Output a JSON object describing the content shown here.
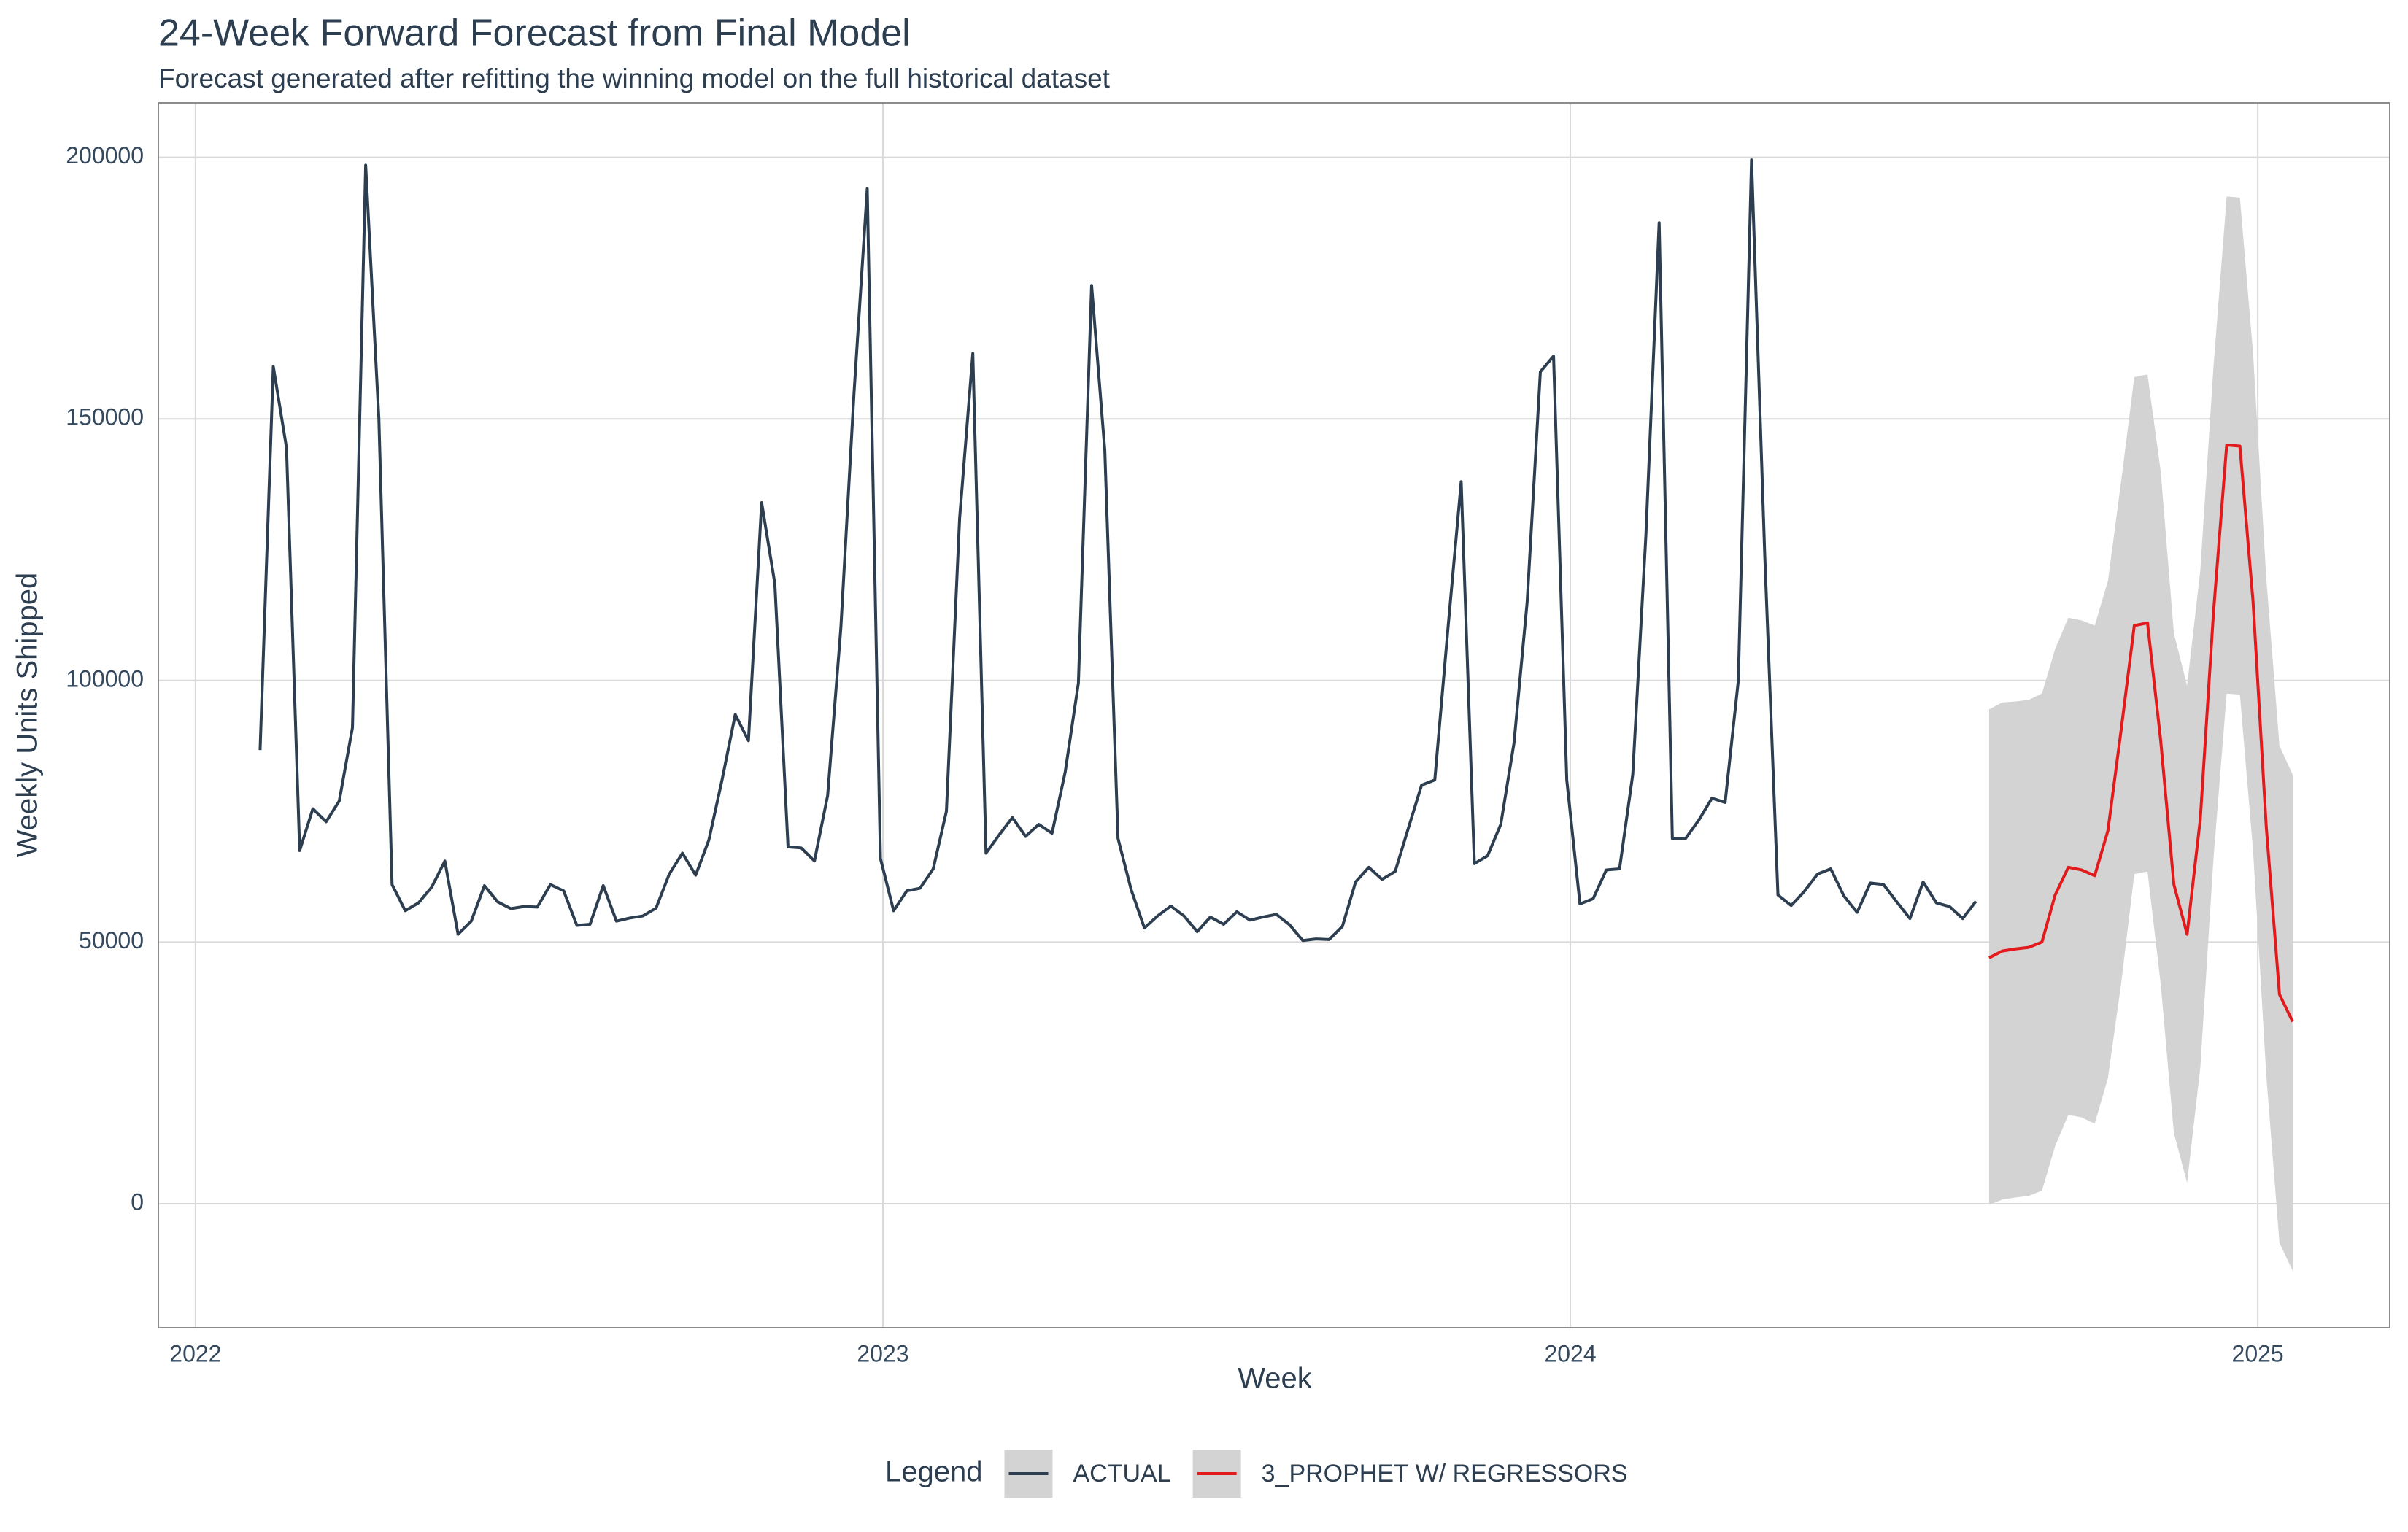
{
  "chart_data": {
    "type": "line",
    "title": "24-Week Forward Forecast from Final Model",
    "subtitle": "Forecast generated after refitting the winning model on the full historical dataset",
    "x_label": "Week",
    "y_label": "Weekly Units Shipped",
    "xlim": [
      2021.946,
      2025.192
    ],
    "xticks": [
      2022,
      2023,
      2024,
      2025
    ],
    "ylim": [
      -23700,
      210400
    ],
    "yticks": [
      0,
      50000,
      100000,
      150000,
      200000
    ],
    "grid": true,
    "legend_title": "Legend",
    "legend_position": "bottom",
    "band_color": "#d3d3d3",
    "series": [
      {
        "name": "ACTUAL",
        "color": "#2c3e50",
        "x": [
          2022.094,
          2022.1132,
          2022.1324,
          2022.1516,
          2022.1708,
          2022.19,
          2022.2092,
          2022.2284,
          2022.2476,
          2022.2668,
          2022.286,
          2022.3052,
          2022.3244,
          2022.3436,
          2022.3628,
          2022.382,
          2022.4012,
          2022.4204,
          2022.4396,
          2022.4588,
          2022.478,
          2022.4972,
          2022.5164,
          2022.5356,
          2022.5548,
          2022.574,
          2022.5932,
          2022.6124,
          2022.6316,
          2022.6508,
          2022.67,
          2022.6892,
          2022.7084,
          2022.7276,
          2022.7468,
          2022.766,
          2022.7852,
          2022.8044,
          2022.8236,
          2022.8428,
          2022.862,
          2022.8812,
          2022.9004,
          2022.9196,
          2022.9388,
          2022.958,
          2022.9772,
          2022.9964,
          2023.0156,
          2023.0348,
          2023.054,
          2023.0732,
          2023.0924,
          2023.1116,
          2023.1308,
          2023.15,
          2023.1692,
          2023.1884,
          2023.2076,
          2023.2268,
          2023.246,
          2023.2652,
          2023.2844,
          2023.3036,
          2023.3228,
          2023.342,
          2023.3612,
          2023.3804,
          2023.3996,
          2023.4188,
          2023.438,
          2023.4572,
          2023.4764,
          2023.4956,
          2023.5148,
          2023.534,
          2023.5532,
          2023.5724,
          2023.5916,
          2023.6108,
          2023.63,
          2023.6492,
          2023.6684,
          2023.6876,
          2023.7068,
          2023.726,
          2023.7452,
          2023.7644,
          2023.7836,
          2023.8028,
          2023.822,
          2023.8412,
          2023.8604,
          2023.8796,
          2023.8988,
          2023.918,
          2023.9372,
          2023.9564,
          2023.9756,
          2023.9948,
          2024.014,
          2024.0332,
          2024.0524,
          2024.0716,
          2024.0908,
          2024.11,
          2024.1292,
          2024.1484,
          2024.1676,
          2024.1868,
          2024.206,
          2024.2252,
          2024.2444,
          2024.2636,
          2024.2828,
          2024.302,
          2024.3212,
          2024.3404,
          2024.3596,
          2024.3788,
          2024.398,
          2024.4172,
          2024.4364,
          2024.4556,
          2024.4748,
          2024.494,
          2024.5132,
          2024.5324,
          2024.5516,
          2024.5708,
          2024.59
        ],
        "values": [
          86700,
          160000,
          144500,
          67500,
          75500,
          73000,
          77000,
          91000,
          198500,
          150000,
          61000,
          56000,
          57500,
          60500,
          65500,
          51500,
          54000,
          60800,
          57700,
          56400,
          56800,
          56700,
          61000,
          59800,
          53200,
          53400,
          60800,
          54000,
          54600,
          55000,
          56500,
          63000,
          67000,
          62800,
          69500,
          81000,
          93500,
          88500,
          134000,
          118500,
          68200,
          68000,
          65500,
          78000,
          110000,
          155000,
          194000,
          66000,
          56000,
          59800,
          60300,
          64000,
          75000,
          131000,
          162500,
          67000,
          70500,
          73800,
          70200,
          72500,
          70800,
          82500,
          99500,
          175500,
          144000,
          69800,
          60000,
          52700,
          55000,
          56900,
          55000,
          52000,
          54800,
          53400,
          55800,
          54200,
          54800,
          55300,
          53300,
          50300,
          50600,
          50500,
          53000,
          61500,
          64300,
          62000,
          63500,
          71800,
          80000,
          81000,
          110000,
          138000,
          65000,
          66500,
          72500,
          88000,
          115000,
          159000,
          162000,
          81000,
          57300,
          58300,
          63800,
          64000,
          82000,
          128000,
          187500,
          69800,
          69800,
          73300,
          77500,
          76700,
          100000,
          199500,
          124000,
          59000,
          57000,
          59700,
          63000,
          64000,
          58800,
          55700,
          61300,
          61000,
          57700,
          54500,
          61500,
          57500,
          56800,
          54500,
          57800
        ]
      },
      {
        "name": "3_PROPHET W/ REGRESSORS",
        "color": "#e31a1c",
        "x": [
          2024.6092,
          2024.6284,
          2024.6476,
          2024.6668,
          2024.686,
          2024.7052,
          2024.7244,
          2024.7436,
          2024.7628,
          2024.782,
          2024.8012,
          2024.8204,
          2024.8396,
          2024.8588,
          2024.878,
          2024.8972,
          2024.9164,
          2024.9356,
          2024.9548,
          2024.974,
          2024.9932,
          2025.0124,
          2025.0316,
          2025.0508
        ],
        "values": [
          47000,
          48300,
          48700,
          49000,
          50000,
          59000,
          64300,
          63800,
          62700,
          71300,
          90500,
          110500,
          111000,
          88500,
          61000,
          51500,
          73500,
          113000,
          145000,
          144800,
          115000,
          72000,
          40000,
          34800
        ],
        "lower": [
          -200,
          800,
          1200,
          1500,
          2500,
          11000,
          17000,
          16500,
          15300,
          24000,
          42000,
          63000,
          63500,
          42000,
          13500,
          4000,
          26000,
          66000,
          97500,
          97300,
          67500,
          24500,
          -7500,
          -12800
        ],
        "upper": [
          94500,
          95800,
          96000,
          96300,
          97500,
          106000,
          112000,
          111500,
          110500,
          119000,
          138000,
          158000,
          158500,
          140000,
          109000,
          99000,
          121000,
          160000,
          192500,
          192300,
          162500,
          119500,
          87500,
          82000
        ]
      }
    ]
  }
}
